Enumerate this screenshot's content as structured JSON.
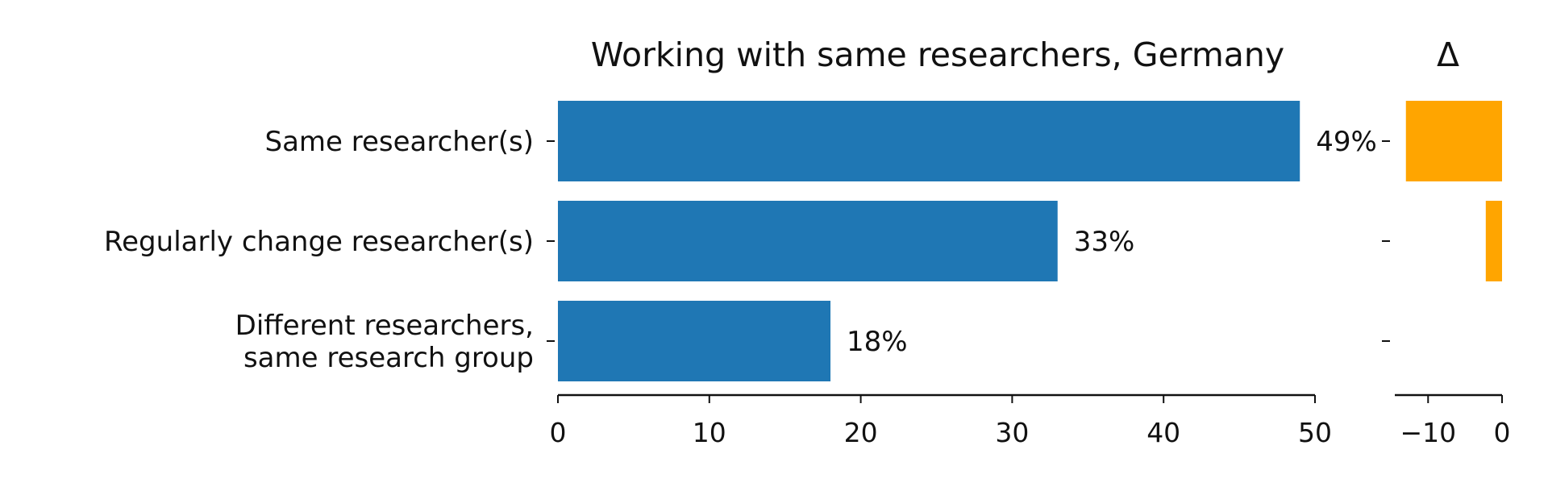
{
  "chart_data": [
    {
      "type": "bar",
      "orientation": "horizontal",
      "title": "Working with same researchers, Germany",
      "categories": [
        [
          "Same researcher(s)"
        ],
        [
          "Regularly change researcher(s)"
        ],
        [
          "Different researchers,",
          "same research group"
        ]
      ],
      "values": [
        49,
        33,
        18
      ],
      "data_labels": [
        "49%",
        "33%",
        "18%"
      ],
      "xlim": [
        0,
        50
      ],
      "xticks": [
        0,
        10,
        20,
        30,
        40,
        50
      ],
      "xtick_labels": [
        "0",
        "10",
        "20",
        "30",
        "40",
        "50"
      ],
      "color": "#1f77b4",
      "grid": false
    },
    {
      "type": "bar",
      "orientation": "horizontal",
      "title": "Δ",
      "values": [
        -13,
        -2.2,
        0
      ],
      "xlim": [
        -14.5,
        0
      ],
      "xticks": [
        -10,
        0
      ],
      "xtick_labels": [
        "−10",
        "0"
      ],
      "color": "#ffa500",
      "grid": false
    }
  ]
}
